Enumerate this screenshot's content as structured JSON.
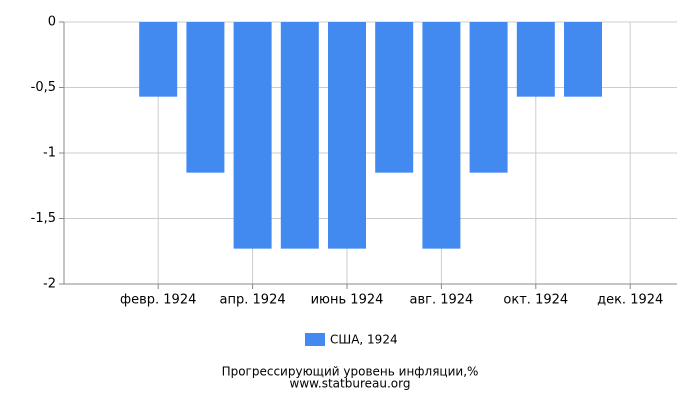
{
  "chart_data": {
    "type": "bar",
    "categories": [
      null,
      "февр. 1924",
      null,
      "апр. 1924",
      null,
      "июнь 1924",
      null,
      "авг. 1924",
      null,
      "окт. 1924",
      null,
      "дек. 1924"
    ],
    "series": [
      {
        "name": "США, 1924",
        "color": "#4289f0",
        "values": [
          null,
          -0.57,
          -1.15,
          -1.73,
          -1.73,
          -1.73,
          -1.15,
          -1.73,
          -1.15,
          -0.57,
          -0.57,
          null
        ]
      }
    ],
    "ylim": [
      -2,
      0
    ],
    "yticks": [
      {
        "value": -2,
        "label": "-2"
      },
      {
        "value": -1.5,
        "label": "-1,5"
      },
      -1,
      {
        "value": -0.5,
        "label": "-0,5"
      },
      0
    ],
    "grid": true,
    "footer": [
      "Прогрессирующий уровень инфляции,%",
      "www.statbureau.org"
    ]
  }
}
